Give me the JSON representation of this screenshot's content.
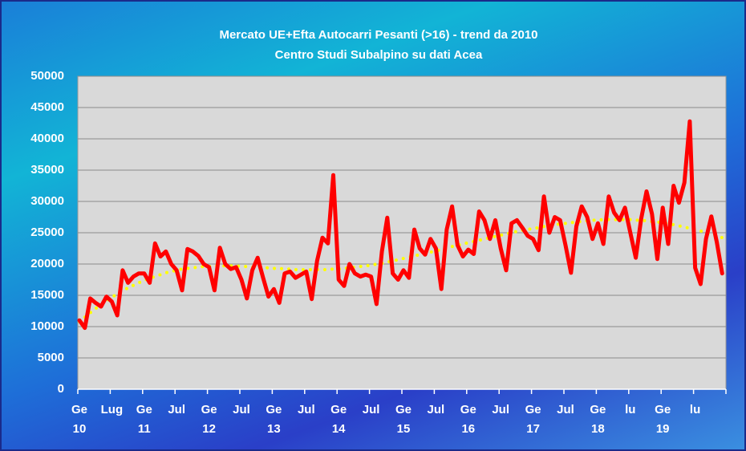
{
  "chart_data": {
    "type": "line",
    "title": "Mercato UE+Efta Autocarri Pesanti (>16) - trend da 2010",
    "subtitle": "Centro Studi Subalpino su dati Acea",
    "categories": [
      "Ge\n10",
      null,
      null,
      null,
      null,
      null,
      "Lug",
      null,
      null,
      null,
      null,
      null,
      "Ge\n11",
      null,
      null,
      null,
      null,
      null,
      "Jul",
      null,
      null,
      null,
      null,
      null,
      "Ge\n12",
      null,
      null,
      null,
      null,
      null,
      "Jul",
      null,
      null,
      null,
      null,
      null,
      "Ge\n13",
      null,
      null,
      null,
      null,
      null,
      "Jul",
      null,
      null,
      null,
      null,
      null,
      "Ge\n14",
      null,
      null,
      null,
      null,
      null,
      "Jul",
      null,
      null,
      null,
      null,
      null,
      "Ge\n15",
      null,
      null,
      null,
      null,
      null,
      "Jul",
      null,
      null,
      null,
      null,
      null,
      "Ge\n16",
      null,
      null,
      null,
      null,
      null,
      "Jul",
      null,
      null,
      null,
      null,
      null,
      "Ge\n17",
      null,
      null,
      null,
      null,
      null,
      "Jul",
      null,
      null,
      null,
      null,
      null,
      "Ge\n18",
      null,
      null,
      null,
      null,
      null,
      "lu",
      null,
      null,
      null,
      null,
      null,
      "Ge\n19",
      null,
      null,
      null,
      null,
      null,
      "lu",
      null,
      null,
      null,
      null,
      null
    ],
    "series": [
      {
        "color": "#ff0000",
        "style": "solid",
        "values": [
          11000,
          9800,
          14500,
          13800,
          13200,
          14800,
          14000,
          11800,
          19000,
          17000,
          18000,
          18500,
          18500,
          17000,
          23300,
          21200,
          22000,
          20000,
          19000,
          15800,
          22400,
          22000,
          21300,
          20000,
          19500,
          15800,
          22600,
          20000,
          19200,
          19500,
          17500,
          14500,
          19000,
          21000,
          17800,
          14800,
          16000,
          13800,
          18500,
          18800,
          17800,
          18300,
          18800,
          14400,
          20500,
          24200,
          23300,
          34200,
          17500,
          16500,
          20000,
          18500,
          18000,
          18300,
          18000,
          13600,
          22000,
          27400,
          18500,
          17500,
          19000,
          17800,
          25500,
          22500,
          21500,
          24000,
          22500,
          16000,
          25500,
          29200,
          23000,
          21200,
          22300,
          21600,
          28400,
          27000,
          24000,
          27000,
          22500,
          19000,
          26500,
          27000,
          25800,
          24500,
          24000,
          22200,
          30800,
          25000,
          27500,
          27000,
          23000,
          18600,
          26000,
          29200,
          27500,
          24000,
          26500,
          23200,
          30800,
          28200,
          27000,
          29000,
          25000,
          21000,
          27200,
          31600,
          28000,
          20800,
          29000,
          23200,
          32500,
          29800,
          33000,
          42800,
          19400,
          16800,
          24000,
          27600,
          23500,
          18500
        ]
      },
      {
        "color": "#ffff00",
        "style": "dotted",
        "values": [
          10800,
          11500,
          12200,
          12900,
          13500,
          14100,
          14700,
          15200,
          15700,
          16200,
          16600,
          17000,
          17400,
          17700,
          18000,
          18300,
          18600,
          18800,
          19000,
          19200,
          19300,
          19400,
          19500,
          19600,
          19600,
          19700,
          19700,
          19700,
          19700,
          19700,
          19600,
          19600,
          19500,
          19500,
          19400,
          19400,
          19300,
          19300,
          19200,
          19200,
          19100,
          19100,
          19100,
          19100,
          19100,
          19100,
          19100,
          19200,
          19200,
          19300,
          19400,
          19500,
          19600,
          19700,
          19800,
          20000,
          20100,
          20300,
          20500,
          20700,
          20900,
          21100,
          21300,
          21500,
          21700,
          21900,
          22100,
          22300,
          22500,
          22800,
          23000,
          23200,
          23400,
          23600,
          23800,
          24000,
          24200,
          24400,
          24600,
          24800,
          25000,
          25200,
          25400,
          25500,
          25700,
          25800,
          26000,
          26100,
          26300,
          26400,
          26500,
          26600,
          26700,
          26800,
          26900,
          27000,
          27000,
          27100,
          27100,
          27100,
          27100,
          27100,
          27100,
          27000,
          27000,
          26900,
          26800,
          26700,
          26600,
          26400,
          26300,
          26100,
          25900,
          25700,
          25500,
          25300,
          25000,
          24800,
          24500,
          24200
        ]
      }
    ],
    "ylim": [
      0,
      50000
    ],
    "yticks": [
      0,
      5000,
      10000,
      15000,
      20000,
      25000,
      30000,
      35000,
      40000,
      45000,
      50000
    ],
    "grid": true,
    "plot_background": "#d9d9d9"
  }
}
